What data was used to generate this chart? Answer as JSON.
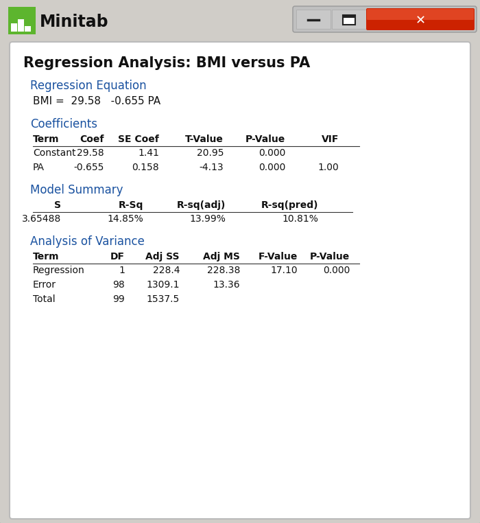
{
  "title": "Regression Analysis: BMI versus PA",
  "section_color": "#1a52a0",
  "bg_color": "#d0cdc8",
  "inner_bg": "#ffffff",
  "reg_eq_section": "Regression Equation",
  "reg_eq_parts": [
    "BMI = ",
    " 29.58",
    "   -0.655 PA"
  ],
  "coef_section": "Coefficients",
  "coef_headers": [
    "Term",
    "Coef",
    "SE Coef",
    "T-Value",
    "P-Value",
    "VIF"
  ],
  "coef_rows": [
    [
      "Constant",
      "29.58",
      "1.41",
      "20.95",
      "0.000",
      ""
    ],
    [
      "PA",
      "-0.655",
      "0.158",
      "-4.13",
      "0.000",
      "1.00"
    ]
  ],
  "model_section": "Model Summary",
  "model_headers": [
    "S",
    "R-Sq",
    "R-sq(adj)",
    "R-sq(pred)"
  ],
  "model_rows": [
    [
      "3.65488",
      "14.85%",
      "13.99%",
      "10.81%"
    ]
  ],
  "anova_section": "Analysis of Variance",
  "anova_headers": [
    "Term",
    "DF",
    "Adj SS",
    "Adj MS",
    "F-Value",
    "P-Value"
  ],
  "anova_rows": [
    [
      "Regression",
      "1",
      "228.4",
      "228.38",
      "17.10",
      "0.000"
    ],
    [
      "Error",
      "98",
      "1309.1",
      "13.36",
      "",
      ""
    ],
    [
      "Total",
      "99",
      "1537.5",
      "",
      "",
      ""
    ]
  ],
  "window_bg": "#d0cdc8",
  "titlebar_bg": "#d0cdc8",
  "content_bg": "#ffffff",
  "logo_green": "#5db52e",
  "btn_gray": "#c8c8c8",
  "btn_red": "#cc2200",
  "btn_red_light": "#e04422"
}
